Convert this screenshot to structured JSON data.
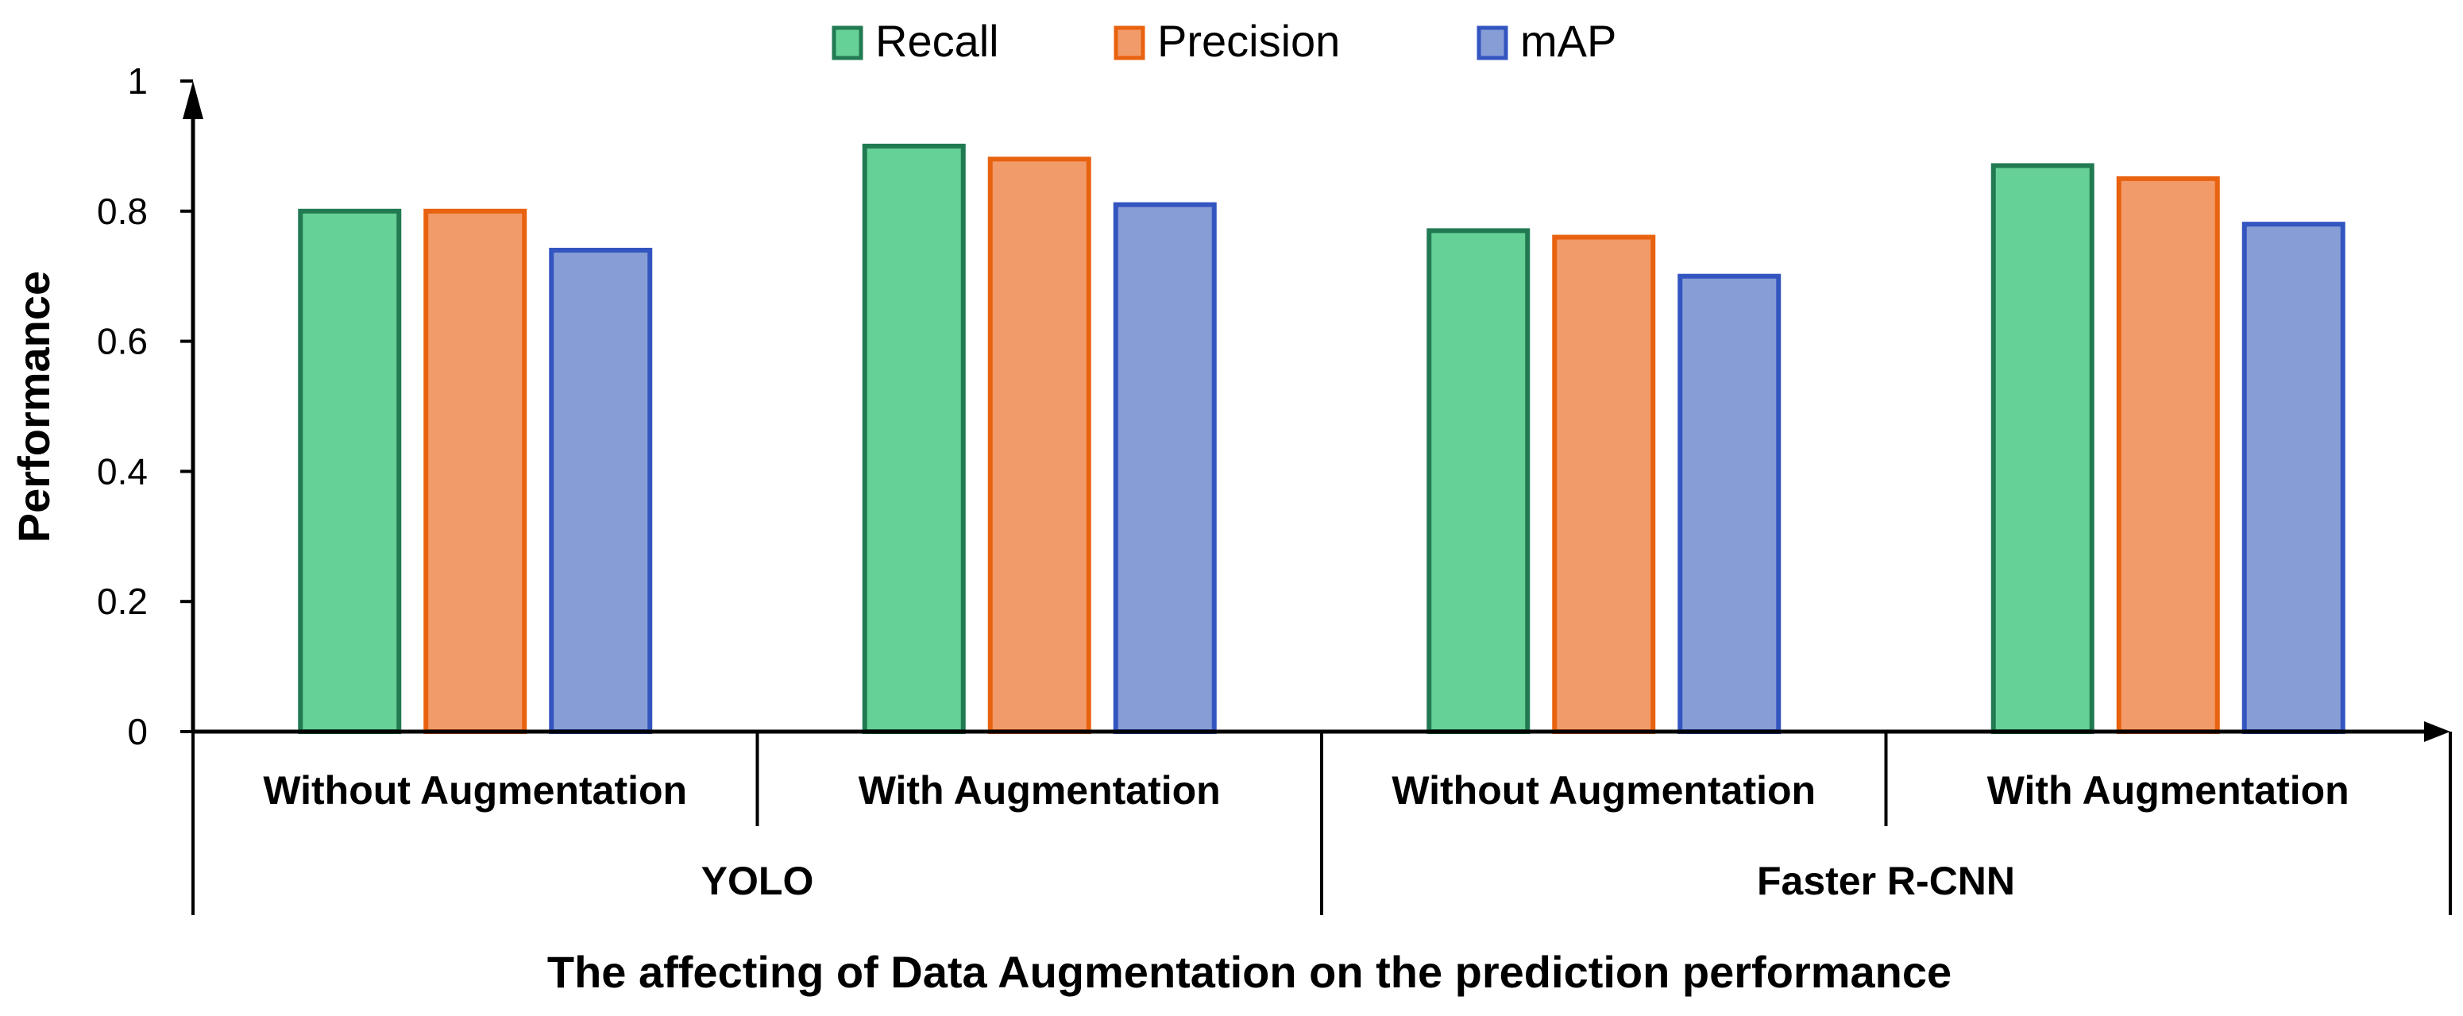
{
  "chart_data": {
    "type": "bar",
    "title": "",
    "xlabel": "The affecting of Data Augmentation on the prediction performance",
    "ylabel": "Performance",
    "ylim": [
      0,
      1
    ],
    "yticks": [
      "0",
      "0.2",
      "0.4",
      "0.6",
      "0.8",
      "1"
    ],
    "groups": [
      "YOLO",
      "Faster R-CNN"
    ],
    "categories": [
      "Without Augmentation",
      "With Augmentation",
      "Without Augmentation",
      "With Augmentation"
    ],
    "category_group": [
      0,
      0,
      1,
      1
    ],
    "series": [
      {
        "name": "Recall",
        "values": [
          0.8,
          0.9,
          0.77,
          0.87
        ],
        "fill": "#66D196",
        "stroke": "#217A52"
      },
      {
        "name": "Precision",
        "values": [
          0.8,
          0.88,
          0.76,
          0.85
        ],
        "fill": "#F29B6A",
        "stroke": "#E8620F"
      },
      {
        "name": "mAP",
        "values": [
          0.74,
          0.81,
          0.7,
          0.78
        ],
        "fill": "#869DD6",
        "stroke": "#3355C0"
      }
    ],
    "legend_position": "top-center",
    "grid": false
  }
}
